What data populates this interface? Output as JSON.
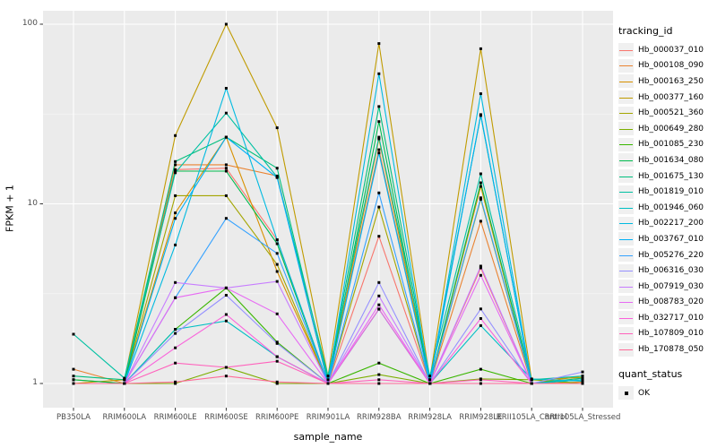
{
  "figure": {
    "x_axis_title": "sample_name",
    "y_axis_title": "FPKM + 1",
    "legend_tracking_title": "tracking_id",
    "legend_quant_title": "quant_status",
    "legend_quant_label": "OK"
  },
  "colors": {
    "panel_bg": "#EBEBEB",
    "grid_major": "#FFFFFF",
    "grid_minor": "#F5F5F5",
    "tick_mark": "#333333",
    "tick_text": "#4D4D4D",
    "point": "#000000",
    "legend_key_bg": "#F0F0F0"
  },
  "chart_data": {
    "type": "line",
    "title": "",
    "xlabel": "sample_name",
    "ylabel": "FPKM + 1",
    "y_scale": "log10",
    "ylim": [
      1,
      130
    ],
    "y_ticks": [
      1,
      10,
      100
    ],
    "y_minor_ticks": [
      3.162,
      31.62
    ],
    "grid": true,
    "legend_position": "right",
    "point_marker": "black-square",
    "categories": [
      "PB350LA",
      "RRIM600LA",
      "RRIM600LE",
      "RRIM600SE",
      "RRIM600PE",
      "RRIM901LA",
      "RRIM928BA",
      "RRIM928LA",
      "RRIM928LE",
      "RRII105LA_Control",
      "RRII105LA_Stressed"
    ],
    "series": [
      {
        "name": "Hb_000037_010",
        "color": "#F8766D",
        "values": [
          1.0,
          1.0,
          15.5,
          15.8,
          6.3,
          1.0,
          6.6,
          1.0,
          4.4,
          1.0,
          1.0
        ]
      },
      {
        "name": "Hb_000108_090",
        "color": "#EA8331",
        "values": [
          1.2,
          1.0,
          16.5,
          16.5,
          14.3,
          1.0,
          20.0,
          1.0,
          8.0,
          1.0,
          1.02
        ]
      },
      {
        "name": "Hb_000163_250",
        "color": "#D89000",
        "values": [
          1.05,
          1.0,
          8.9,
          23.5,
          4.2,
          1.0,
          23.0,
          1.0,
          12.5,
          1.0,
          1.1
        ]
      },
      {
        "name": "Hb_000377_160",
        "color": "#C09B00",
        "values": [
          1.0,
          1.05,
          24.0,
          100.0,
          26.5,
          1.1,
          78.0,
          1.05,
          73.0,
          1.05,
          1.08
        ]
      },
      {
        "name": "Hb_000521_360",
        "color": "#A3A500",
        "values": [
          1.0,
          1.0,
          11.1,
          11.1,
          4.6,
          1.0,
          9.6,
          1.0,
          10.6,
          1.0,
          1.05
        ]
      },
      {
        "name": "Hb_000649_280",
        "color": "#7CAE00",
        "values": [
          1.0,
          1.0,
          1.0,
          1.23,
          1.0,
          1.0,
          1.12,
          1.0,
          1.06,
          1.05,
          1.0
        ]
      },
      {
        "name": "Hb_001085_230",
        "color": "#39B600",
        "values": [
          1.0,
          1.0,
          2.0,
          3.4,
          1.7,
          1.0,
          1.3,
          1.0,
          1.2,
          1.0,
          1.0
        ]
      },
      {
        "name": "Hb_001634_080",
        "color": "#00BB4E",
        "values": [
          1.05,
          1.0,
          15.2,
          15.2,
          6.0,
          1.0,
          28.7,
          1.0,
          13.1,
          1.0,
          1.05
        ]
      },
      {
        "name": "Hb_001675_130",
        "color": "#00BF7D",
        "values": [
          1.1,
          1.05,
          17.2,
          23.5,
          15.8,
          1.05,
          34.8,
          1.05,
          31.0,
          1.0,
          1.07
        ]
      },
      {
        "name": "Hb_001819_010",
        "color": "#00C1A3",
        "values": [
          1.88,
          1.07,
          14.9,
          32.0,
          14.1,
          1.1,
          23.5,
          1.1,
          14.7,
          1.05,
          1.1
        ]
      },
      {
        "name": "Hb_001946_060",
        "color": "#00BFC4",
        "values": [
          1.0,
          1.0,
          2.0,
          2.23,
          1.41,
          1.0,
          2.59,
          1.0,
          2.1,
          1.06,
          1.03
        ]
      },
      {
        "name": "Hb_002217_200",
        "color": "#00BAE0",
        "values": [
          1.0,
          1.0,
          5.9,
          44.0,
          6.3,
          1.0,
          53.0,
          1.0,
          41.0,
          1.0,
          1.05
        ]
      },
      {
        "name": "Hb_003767_010",
        "color": "#00B0F6",
        "values": [
          1.0,
          1.0,
          8.3,
          23.5,
          14.0,
          1.0,
          19.2,
          1.0,
          31.4,
          1.0,
          1.0
        ]
      },
      {
        "name": "Hb_005276_220",
        "color": "#35A2FF",
        "values": [
          1.0,
          1.0,
          3.0,
          8.3,
          5.3,
          1.0,
          11.5,
          1.0,
          10.8,
          1.0,
          1.0
        ]
      },
      {
        "name": "Hb_006316_030",
        "color": "#9590FF",
        "values": [
          1.0,
          1.0,
          1.9,
          3.1,
          1.67,
          1.0,
          3.65,
          1.0,
          2.6,
          1.0,
          1.16
        ]
      },
      {
        "name": "Hb_007919_030",
        "color": "#C77CFF",
        "values": [
          1.0,
          1.0,
          3.65,
          3.4,
          3.7,
          1.0,
          3.07,
          1.0,
          4.5,
          1.0,
          1.0
        ]
      },
      {
        "name": "Hb_008783_020",
        "color": "#E76BF3",
        "values": [
          1.0,
          1.0,
          3.0,
          3.4,
          2.44,
          1.0,
          2.74,
          1.0,
          4.0,
          1.0,
          1.0
        ]
      },
      {
        "name": "Hb_032717_010",
        "color": "#FA62DB",
        "values": [
          1.0,
          1.0,
          1.58,
          2.42,
          1.41,
          1.0,
          2.6,
          1.0,
          2.3,
          1.0,
          1.0
        ]
      },
      {
        "name": "Hb_107809_010",
        "color": "#FF62BC",
        "values": [
          1.0,
          1.0,
          1.3,
          1.23,
          1.33,
          1.0,
          1.05,
          1.0,
          1.05,
          1.0,
          1.0
        ]
      },
      {
        "name": "Hb_170878_050",
        "color": "#FF6A98",
        "values": [
          1.0,
          1.0,
          1.02,
          1.1,
          1.02,
          1.0,
          1.0,
          1.0,
          1.0,
          1.0,
          1.0
        ]
      }
    ]
  }
}
